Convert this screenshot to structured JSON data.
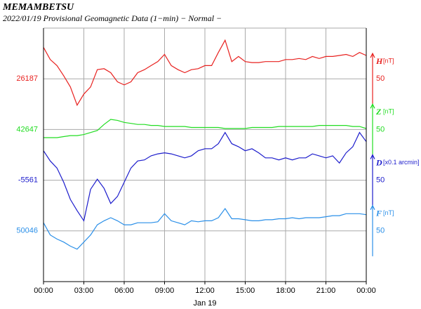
{
  "chart_data": {
    "type": "line",
    "title": "MEMAMBETSU",
    "subtitle": "2022/01/19  Provisional Geomagnetic Data (1−min)  − Normal −",
    "xlabel": "Jan 19",
    "xlim": [
      0,
      24
    ],
    "xticks": [
      {
        "value": 0,
        "label": "00:00"
      },
      {
        "value": 3,
        "label": "03:00"
      },
      {
        "value": 6,
        "label": "06:00"
      },
      {
        "value": 9,
        "label": "09:00"
      },
      {
        "value": 12,
        "label": "12:00"
      },
      {
        "value": 15,
        "label": "15:00"
      },
      {
        "value": 18,
        "label": "18:00"
      },
      {
        "value": 21,
        "label": "21:00"
      },
      {
        "value": 24,
        "label": "00:00"
      }
    ],
    "grid": true,
    "x": [
      0,
      0.5,
      1,
      1.5,
      2,
      2.5,
      3,
      3.5,
      4,
      4.5,
      5,
      5.5,
      6,
      6.5,
      7,
      7.5,
      8,
      8.5,
      9,
      9.5,
      10,
      10.5,
      11,
      11.5,
      12,
      12.5,
      13,
      13.5,
      14,
      14.5,
      15,
      15.5,
      16,
      16.5,
      17,
      17.5,
      18,
      18.5,
      19,
      19.5,
      20,
      20.5,
      21,
      21.5,
      22,
      22.5,
      23,
      23.5,
      24
    ],
    "series": [
      {
        "name": "H",
        "unit": "[nT]",
        "color": "#e8211f",
        "baseline": 26187,
        "scale": 50,
        "values": [
          26218,
          26206,
          26200,
          26190,
          26179,
          26161,
          26172,
          26179,
          26196,
          26197,
          26193,
          26184,
          26181,
          26184,
          26193,
          26196,
          26200,
          26204,
          26211,
          26200,
          26196,
          26193,
          26196,
          26197,
          26200,
          26200,
          26213,
          26225,
          26204,
          26209,
          26204,
          26203,
          26203,
          26204,
          26204,
          26204,
          26206,
          26206,
          26207,
          26206,
          26209,
          26207,
          26209,
          26209,
          26210,
          26211,
          26209,
          26213,
          26210
        ]
      },
      {
        "name": "Z",
        "unit": "[nT]",
        "color": "#22dd22",
        "baseline": 42647,
        "scale": 50,
        "values": [
          42639,
          42639,
          42639,
          42640,
          42641,
          42641,
          42642,
          42644,
          42646,
          42652,
          42657,
          42656,
          42654,
          42653,
          42652,
          42652,
          42651,
          42651,
          42650,
          42650,
          42650,
          42650,
          42649,
          42649,
          42649,
          42649,
          42649,
          42648,
          42648,
          42648,
          42648,
          42649,
          42649,
          42649,
          42649,
          42650,
          42650,
          42650,
          42650,
          42650,
          42650,
          42651,
          42651,
          42651,
          42651,
          42651,
          42650,
          42650,
          42648
        ]
      },
      {
        "name": "D",
        "unit": "[x0.1 arcmin]",
        "color": "#1c1ccc",
        "baseline": -5561,
        "scale": 50,
        "values": [
          -5532,
          -5542,
          -5549,
          -5563,
          -5580,
          -5591,
          -5601,
          -5570,
          -5560,
          -5569,
          -5584,
          -5577,
          -5563,
          -5549,
          -5542,
          -5541,
          -5537,
          -5535,
          -5534,
          -5535,
          -5537,
          -5539,
          -5537,
          -5532,
          -5530,
          -5530,
          -5525,
          -5514,
          -5525,
          -5528,
          -5532,
          -5530,
          -5534,
          -5539,
          -5539,
          -5541,
          -5539,
          -5541,
          -5539,
          -5539,
          -5535,
          -5537,
          -5539,
          -5537,
          -5544,
          -5534,
          -5528,
          -5514,
          -5523
        ]
      },
      {
        "name": "F",
        "unit": "[nT]",
        "color": "#2a8fe8",
        "baseline": 50046,
        "scale": 50,
        "values": [
          50054,
          50042,
          50038,
          50035,
          50031,
          50028,
          50035,
          50042,
          50052,
          50056,
          50059,
          50056,
          50052,
          50052,
          50054,
          50054,
          50054,
          50055,
          50063,
          50056,
          50054,
          50052,
          50056,
          50055,
          50056,
          50056,
          50059,
          50068,
          50058,
          50058,
          50057,
          50056,
          50056,
          50057,
          50057,
          50058,
          50058,
          50059,
          50058,
          50059,
          50059,
          50059,
          50060,
          50061,
          50061,
          50063,
          50063,
          50063,
          50062
        ]
      }
    ]
  }
}
